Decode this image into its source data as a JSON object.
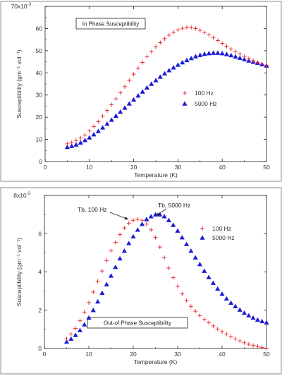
{
  "colors": {
    "series_100hz": "#e8232a",
    "series_5000hz": "#1b1bd6",
    "axis": "#222222",
    "frame": "#888888"
  },
  "chart_data": [
    {
      "type": "scatter",
      "title": "In Phase Susceptibility",
      "xlabel": "Temperature (K)",
      "ylabel": "Susceptibility (gm⁻¹ vol⁻¹)",
      "ymult": "x10",
      "yexp": "-3",
      "xlim": [
        0,
        50
      ],
      "ylim": [
        0,
        70
      ],
      "xticks": [
        0,
        10,
        20,
        30,
        40,
        50
      ],
      "yticks": [
        0,
        10,
        20,
        30,
        40,
        50,
        60,
        70
      ],
      "grid": false,
      "legend": "center-right",
      "series": [
        {
          "name": "100 Hz",
          "marker": "plus",
          "color": "#e8232a",
          "x": [
            5,
            6,
            7,
            8,
            9,
            10,
            11,
            12,
            13,
            14,
            15,
            16,
            17,
            18,
            19,
            20,
            21,
            22,
            23,
            24,
            25,
            26,
            27,
            28,
            29,
            30,
            31,
            32,
            33,
            34,
            35,
            36,
            37,
            38,
            39,
            40,
            41,
            42,
            43,
            44,
            45,
            46,
            47,
            48,
            49,
            50
          ],
          "y": [
            8,
            8.6,
            9.5,
            10.6,
            12,
            13.8,
            15.8,
            18,
            20.5,
            23,
            25.6,
            28.3,
            31,
            33.8,
            36.6,
            39.4,
            42.1,
            44.7,
            47.2,
            49.5,
            51.7,
            53.6,
            55.4,
            57,
            58.3,
            59.4,
            60.1,
            60.5,
            60.4,
            60,
            59.2,
            58.2,
            57.1,
            55.9,
            54.6,
            53.3,
            52,
            50.8,
            49.6,
            48.5,
            47.4,
            46.4,
            45.5,
            44.7,
            44,
            43.4
          ]
        },
        {
          "name": "5000 Hz",
          "marker": "triangle",
          "color": "#1b1bd6",
          "x": [
            5,
            6,
            7,
            8,
            9,
            10,
            11,
            12,
            13,
            14,
            15,
            16,
            17,
            18,
            19,
            20,
            21,
            22,
            23,
            24,
            25,
            26,
            27,
            28,
            29,
            30,
            31,
            32,
            33,
            34,
            35,
            36,
            37,
            38,
            39,
            40,
            41,
            42,
            43,
            44,
            45,
            46,
            47,
            48,
            49,
            50
          ],
          "y": [
            6.5,
            7,
            7.6,
            8.5,
            9.6,
            10.8,
            12.2,
            13.7,
            15.3,
            17,
            18.8,
            20.6,
            22.4,
            24.2,
            26.1,
            27.9,
            29.7,
            31.5,
            33.3,
            35,
            36.6,
            38.2,
            39.7,
            41.1,
            42.4,
            43.6,
            44.7,
            45.7,
            46.6,
            47.4,
            48,
            48.5,
            48.8,
            49,
            49,
            48.8,
            48.4,
            47.9,
            47.3,
            46.7,
            46.1,
            45.5,
            44.9,
            44.4,
            43.8,
            43.2
          ]
        }
      ]
    },
    {
      "type": "scatter",
      "title": "Out-of Phase Susceptibility",
      "xlabel": "Temperature (K)",
      "ylabel": "Susceptibility (gm⁻¹ vol⁻¹)",
      "ymult": "x10",
      "yexp": "-3",
      "xlim": [
        0,
        50
      ],
      "ylim": [
        0,
        8
      ],
      "xticks": [
        0,
        10,
        20,
        30,
        40,
        50
      ],
      "yticks": [
        0,
        2,
        4,
        6,
        8
      ],
      "grid": false,
      "legend": "top-right",
      "annotations": [
        {
          "text": "Tb, 100 Hz",
          "x": 21,
          "y": 6.75
        },
        {
          "text": "Tb, 5000 Hz",
          "x": 25.5,
          "y": 7.05
        }
      ],
      "series": [
        {
          "name": "100 Hz",
          "marker": "plus",
          "color": "#e8232a",
          "x": [
            5,
            6,
            7,
            8,
            9,
            10,
            11,
            12,
            13,
            14,
            15,
            16,
            17,
            18,
            19,
            20,
            21,
            22,
            23,
            24,
            25,
            26,
            27,
            28,
            29,
            30,
            31,
            32,
            33,
            34,
            35,
            36,
            37,
            38,
            39,
            40,
            41,
            42,
            43,
            44,
            45,
            46,
            47,
            48,
            49,
            50
          ],
          "y": [
            0.5,
            0.75,
            1.05,
            1.45,
            1.9,
            2.4,
            2.95,
            3.5,
            4.05,
            4.6,
            5.1,
            5.55,
            5.95,
            6.3,
            6.55,
            6.7,
            6.75,
            6.7,
            6.5,
            6.2,
            5.8,
            5.3,
            4.75,
            4.2,
            3.7,
            3.25,
            2.85,
            2.5,
            2.2,
            1.95,
            1.72,
            1.52,
            1.35,
            1.18,
            1.02,
            0.88,
            0.75,
            0.62,
            0.5,
            0.4,
            0.3,
            0.22,
            0.16,
            0.1,
            0.06,
            0.02
          ]
        },
        {
          "name": "5000 Hz",
          "marker": "triangle",
          "color": "#1b1bd6",
          "x": [
            5,
            6,
            7,
            8,
            9,
            10,
            11,
            12,
            13,
            14,
            15,
            16,
            17,
            18,
            19,
            20,
            21,
            22,
            23,
            24,
            25,
            26,
            27,
            28,
            29,
            30,
            31,
            32,
            33,
            34,
            35,
            36,
            37,
            38,
            39,
            40,
            41,
            42,
            43,
            44,
            45,
            46,
            47,
            48,
            49,
            50
          ],
          "y": [
            0.35,
            0.5,
            0.7,
            0.95,
            1.25,
            1.6,
            2,
            2.45,
            2.9,
            3.35,
            3.8,
            4.25,
            4.7,
            5.1,
            5.5,
            5.85,
            6.2,
            6.5,
            6.75,
            6.9,
            7,
            7,
            6.9,
            6.7,
            6.45,
            6.15,
            5.8,
            5.45,
            5.1,
            4.75,
            4.4,
            4.05,
            3.72,
            3.42,
            3.12,
            2.85,
            2.6,
            2.38,
            2.2,
            2.02,
            1.86,
            1.72,
            1.6,
            1.5,
            1.42,
            1.35
          ]
        }
      ]
    }
  ]
}
